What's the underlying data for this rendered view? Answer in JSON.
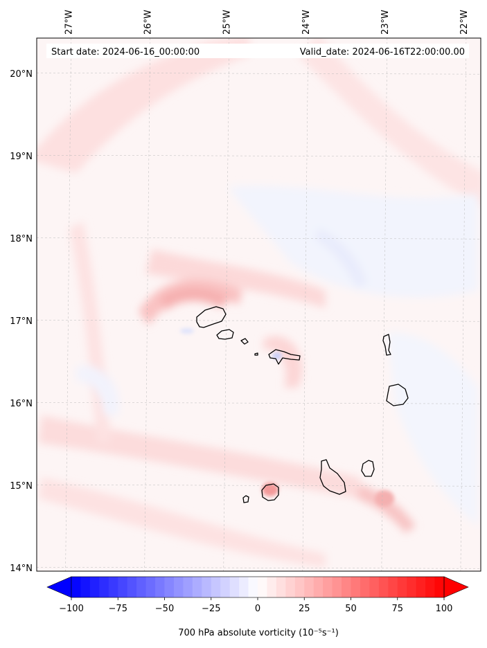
{
  "header": {
    "start_label": "Start date: 2024-06-16_00:00:00",
    "valid_label": "Valid_date: 2024-06-16T22:00:00.00"
  },
  "map": {
    "lon_ticks": [
      {
        "value": -27,
        "label": "27°W"
      },
      {
        "value": -26,
        "label": "26°W"
      },
      {
        "value": -25,
        "label": "25°W"
      },
      {
        "value": -24,
        "label": "24°W"
      },
      {
        "value": -23,
        "label": "23°W"
      },
      {
        "value": -22,
        "label": "22°W"
      }
    ],
    "lat_ticks": [
      {
        "value": 20,
        "label": "20°N"
      },
      {
        "value": 19,
        "label": "19°N"
      },
      {
        "value": 18,
        "label": "18°N"
      },
      {
        "value": 17,
        "label": "17°N"
      },
      {
        "value": 16,
        "label": "16°N"
      },
      {
        "value": 15,
        "label": "15°N"
      },
      {
        "value": 14,
        "label": "14°N"
      }
    ],
    "extent": {
      "lon_min": -27.4,
      "lon_max": -21.78,
      "lat_min": 13.96,
      "lat_max": 20.43
    },
    "gridlines": true
  },
  "colorbar": {
    "label": "700 hPa absolute vorticity (10⁻⁵s⁻¹)",
    "min": -100,
    "max": 100,
    "ticks": [
      {
        "value": -100,
        "label": "−100"
      },
      {
        "value": -75,
        "label": "−75"
      },
      {
        "value": -50,
        "label": "−50"
      },
      {
        "value": -25,
        "label": "−25"
      },
      {
        "value": 0,
        "label": "0"
      },
      {
        "value": 25,
        "label": "25"
      },
      {
        "value": 50,
        "label": "50"
      },
      {
        "value": 75,
        "label": "75"
      },
      {
        "value": 100,
        "label": "100"
      }
    ],
    "colors": {
      "negative": "#0000ff",
      "zero": "#ffffff",
      "positive": "#ff0000"
    },
    "extend": "both"
  }
}
